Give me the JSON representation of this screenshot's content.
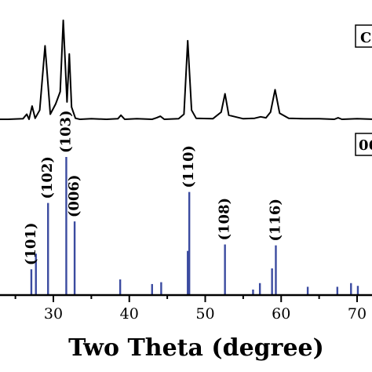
{
  "chart_data": [
    {
      "type": "line",
      "panel": "top",
      "legend_label": "C",
      "xlabel": "Two Theta (degree)",
      "ylabel": "",
      "xlim": [
        20.5,
        72.5
      ],
      "baseline": 3,
      "x": [
        20.5,
        24,
        26,
        26.5,
        26.8,
        27.2,
        27.6,
        28.2,
        28.9,
        29.6,
        30.3,
        30.9,
        31.3,
        31.8,
        32.1,
        32.4,
        32.9,
        33.5,
        35,
        37,
        38.5,
        38.9,
        39.4,
        41,
        43,
        43.6,
        44.1,
        44.6,
        46.5,
        47.2,
        47.7,
        48.2,
        48.8,
        51,
        52.1,
        52.6,
        53.1,
        55,
        56.5,
        57.3,
        58,
        58.6,
        59.2,
        59.8,
        61,
        63,
        65,
        67,
        67.5,
        68,
        70,
        72.5
      ],
      "y": [
        3,
        3,
        3.5,
        8,
        3,
        16,
        4,
        12,
        75,
        8,
        18,
        30,
        100,
        20,
        67,
        15,
        4,
        3,
        3.5,
        3,
        3.5,
        7,
        3,
        3.5,
        3,
        4.5,
        6,
        3,
        3.5,
        8,
        80,
        12,
        4,
        3.5,
        10,
        28,
        7,
        3.5,
        4,
        5.5,
        4.5,
        10,
        32,
        9,
        4,
        3.5,
        3.5,
        3,
        4.5,
        3,
        3.5,
        3
      ]
    },
    {
      "type": "bar",
      "panel": "bottom",
      "legend_label": "06",
      "xlabel": "Two Theta (degree)",
      "ylabel": "",
      "xlim": [
        20.5,
        72.5
      ],
      "x_ticks": [
        30,
        40,
        50,
        60,
        70
      ],
      "x_tick_labels": [
        "30",
        "40",
        "50",
        "60",
        "70"
      ],
      "line_color": "#3b4ba0",
      "x": [
        27.1,
        27.7,
        29.3,
        31.7,
        32.8,
        38.8,
        43.0,
        44.2,
        47.7,
        47.9,
        52.6,
        56.3,
        57.2,
        58.8,
        59.3,
        63.5,
        67.4,
        69.2,
        70.1
      ],
      "values": [
        28,
        45,
        100,
        150,
        80,
        17,
        12,
        14,
        48,
        112,
        55,
        6,
        13,
        29,
        54,
        9,
        9,
        13,
        10
      ],
      "labels": [
        {
          "x": 27.1,
          "text": "(101)"
        },
        {
          "x": 29.3,
          "text": "(102)"
        },
        {
          "x": 31.7,
          "text": "(103)"
        },
        {
          "x": 32.8,
          "text": "(006)"
        },
        {
          "x": 47.9,
          "text": "(110)"
        },
        {
          "x": 52.6,
          "text": "(108)"
        },
        {
          "x": 59.3,
          "text": "(116)"
        }
      ]
    }
  ]
}
